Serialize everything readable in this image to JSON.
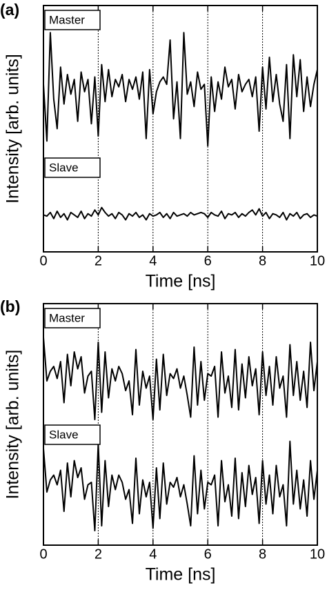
{
  "chart_data": [
    {
      "type": "line",
      "label": "(a)",
      "xlabel": "Time [ns]",
      "ylabel": "Intensity [arb. units]",
      "x": [
        0,
        0.125,
        0.25,
        0.375,
        0.5,
        0.625,
        0.75,
        0.875,
        1,
        1.125,
        1.25,
        1.375,
        1.5,
        1.625,
        1.75,
        1.875,
        2,
        2.125,
        2.25,
        2.375,
        2.5,
        2.625,
        2.75,
        2.875,
        3,
        3.125,
        3.25,
        3.375,
        3.5,
        3.625,
        3.75,
        3.875,
        4,
        4.125,
        4.25,
        4.375,
        4.5,
        4.625,
        4.75,
        4.875,
        5,
        5.125,
        5.25,
        5.375,
        5.5,
        5.625,
        5.75,
        5.875,
        6,
        6.125,
        6.25,
        6.375,
        6.5,
        6.625,
        6.75,
        6.875,
        7,
        7.125,
        7.25,
        7.375,
        7.5,
        7.625,
        7.75,
        7.875,
        8,
        8.125,
        8.25,
        8.375,
        8.5,
        8.625,
        8.75,
        8.875,
        9,
        9.125,
        9.25,
        9.375,
        9.5,
        9.625,
        9.75,
        9.875,
        10
      ],
      "series": [
        {
          "name": "Master",
          "color": "#000000",
          "values": [
            6.8,
            4.5,
            8.9,
            6.2,
            5.0,
            7.5,
            6.0,
            7.2,
            6.4,
            7.0,
            5.3,
            7.3,
            6.5,
            7.0,
            5.2,
            7.1,
            4.7,
            7.6,
            6.1,
            7.4,
            6.3,
            7.0,
            6.7,
            7.2,
            6.1,
            7.0,
            6.6,
            7.1,
            6.2,
            7.3,
            4.6,
            7.4,
            5.6,
            6.5,
            6.9,
            7.1,
            6.8,
            8.6,
            5.4,
            6.9,
            4.6,
            8.9,
            6.4,
            6.9,
            5.9,
            7.3,
            6.6,
            6.8,
            4.3,
            7.1,
            5.7,
            6.9,
            6.2,
            7.5,
            6.7,
            7.0,
            5.8,
            7.2,
            6.5,
            6.8,
            7.0,
            6.3,
            7.1,
            4.9,
            7.5,
            5.8,
            7.9,
            6.1,
            7.2,
            6.0,
            5.3,
            7.6,
            4.6,
            8.0,
            6.3,
            7.8,
            5.7,
            7.1,
            5.9,
            6.8,
            7.4
          ]
        },
        {
          "name": "Slave",
          "color": "#000000",
          "values": [
            1.5,
            1.45,
            1.6,
            1.35,
            1.65,
            1.4,
            1.55,
            1.3,
            1.6,
            1.5,
            1.4,
            1.65,
            1.35,
            1.55,
            1.45,
            1.7,
            1.5,
            1.8,
            1.6,
            1.45,
            1.55,
            1.35,
            1.6,
            1.5,
            1.3,
            1.55,
            1.45,
            1.6,
            1.4,
            1.5,
            1.3,
            1.55,
            1.45,
            1.5,
            1.6,
            1.4,
            1.55,
            1.35,
            1.6,
            1.45,
            1.5,
            1.55,
            1.45,
            1.6,
            1.5,
            1.55,
            1.6,
            1.55,
            1.4,
            1.6,
            1.5,
            1.45,
            1.65,
            1.35,
            1.55,
            1.5,
            1.6,
            1.4,
            1.55,
            1.45,
            1.6,
            1.7,
            1.5,
            1.75,
            1.45,
            1.6,
            1.35,
            1.55,
            1.5,
            1.4,
            1.6,
            1.3,
            1.55,
            1.45,
            1.6,
            1.35,
            1.5,
            1.55,
            1.4,
            1.5,
            1.45
          ]
        }
      ],
      "xlim": [
        0,
        10
      ],
      "xticks": [
        0,
        2,
        4,
        6,
        8,
        10
      ],
      "ylim": [
        0,
        10
      ],
      "grid": true
    },
    {
      "type": "line",
      "label": "(b)",
      "xlabel": "Time [ns]",
      "ylabel": "Intensity [arb. units]",
      "x": [
        0,
        0.125,
        0.25,
        0.375,
        0.5,
        0.625,
        0.75,
        0.875,
        1,
        1.125,
        1.25,
        1.375,
        1.5,
        1.625,
        1.75,
        1.875,
        2,
        2.125,
        2.25,
        2.375,
        2.5,
        2.625,
        2.75,
        2.875,
        3,
        3.125,
        3.25,
        3.375,
        3.5,
        3.625,
        3.75,
        3.875,
        4,
        4.125,
        4.25,
        4.375,
        4.5,
        4.625,
        4.75,
        4.875,
        5,
        5.125,
        5.25,
        5.375,
        5.5,
        5.625,
        5.75,
        5.875,
        6,
        6.125,
        6.25,
        6.375,
        6.5,
        6.625,
        6.75,
        6.875,
        7,
        7.125,
        7.25,
        7.375,
        7.5,
        7.625,
        7.75,
        7.875,
        8,
        8.125,
        8.25,
        8.375,
        8.5,
        8.625,
        8.75,
        8.875,
        9,
        9.125,
        9.25,
        9.375,
        9.5,
        9.625,
        9.75,
        9.875,
        10
      ],
      "series": [
        {
          "name": "Master",
          "color": "#000000",
          "values": [
            8.6,
            6.8,
            7.2,
            7.4,
            6.9,
            7.6,
            5.9,
            7.9,
            6.6,
            8.0,
            7.3,
            7.8,
            6.3,
            7.0,
            7.2,
            5.2,
            8.4,
            5.5,
            8.0,
            6.1,
            7.3,
            6.8,
            7.4,
            7.1,
            6.4,
            6.8,
            5.4,
            8.1,
            5.8,
            7.2,
            6.5,
            7.0,
            5.2,
            7.7,
            5.6,
            7.9,
            6.2,
            7.1,
            6.9,
            7.3,
            6.5,
            7.0,
            6.2,
            5.3,
            8.2,
            5.8,
            7.6,
            6.0,
            7.1,
            7.0,
            7.4,
            5.3,
            8.0,
            6.3,
            7.0,
            5.7,
            8.1,
            5.6,
            7.5,
            6.1,
            7.8,
            6.6,
            7.3,
            5.4,
            8.0,
            6.2,
            7.4,
            5.8,
            7.8,
            6.5,
            7.0,
            5.3,
            8.3,
            6.2,
            7.6,
            6.0,
            7.2,
            5.7,
            8.4,
            6.4,
            7.6
          ]
        },
        {
          "name": "Slave",
          "color": "#000000",
          "values": [
            4.0,
            2.2,
            2.7,
            2.9,
            2.5,
            3.1,
            1.4,
            3.4,
            2.0,
            3.5,
            2.8,
            3.2,
            1.9,
            2.5,
            2.6,
            0.6,
            4.2,
            0.8,
            3.5,
            1.6,
            2.9,
            2.3,
            2.9,
            2.6,
            1.9,
            2.3,
            0.9,
            3.6,
            1.3,
            2.7,
            2.0,
            2.6,
            0.7,
            3.2,
            1.1,
            3.4,
            1.7,
            2.6,
            2.4,
            2.8,
            2.0,
            2.5,
            1.7,
            0.8,
            3.7,
            1.3,
            3.1,
            1.5,
            2.6,
            2.5,
            2.9,
            0.8,
            3.5,
            1.8,
            2.5,
            1.2,
            3.6,
            1.1,
            3.0,
            1.6,
            3.3,
            2.1,
            2.8,
            0.9,
            3.5,
            1.7,
            2.9,
            1.3,
            3.3,
            2.0,
            2.5,
            0.8,
            4.3,
            1.7,
            3.1,
            1.5,
            2.7,
            1.2,
            3.5,
            1.9,
            3.1
          ]
        }
      ],
      "xlim": [
        0,
        10
      ],
      "xticks": [
        0,
        2,
        4,
        6,
        8,
        10
      ],
      "ylim": [
        0,
        10
      ],
      "grid": true
    }
  ]
}
